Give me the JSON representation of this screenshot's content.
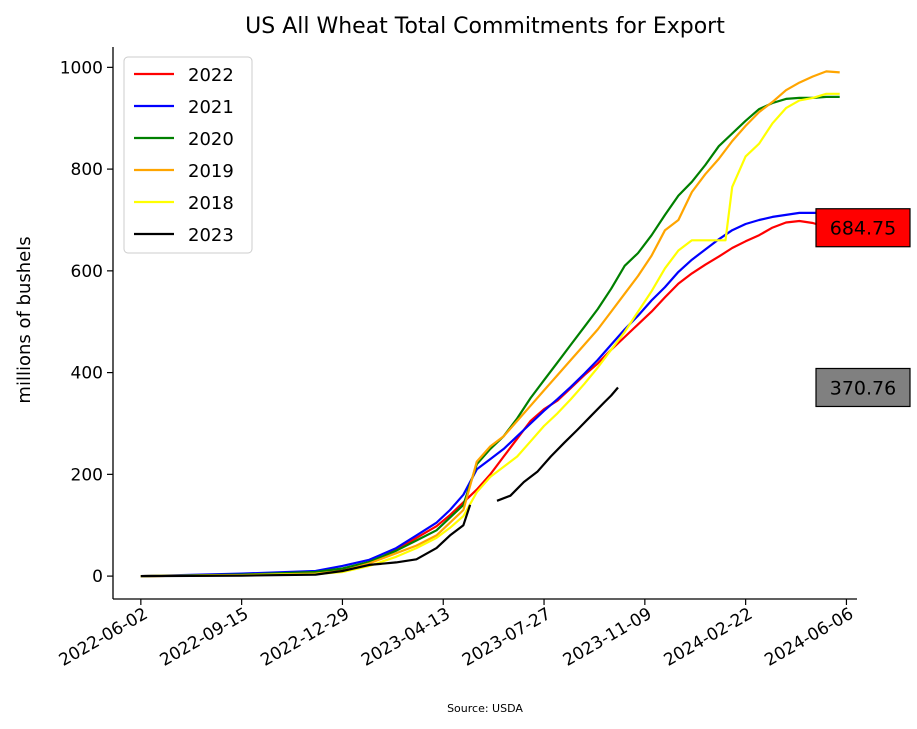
{
  "chart_data": {
    "type": "line",
    "title": "US All Wheat Total Commitments for Export",
    "ylabel": "millions of bushels",
    "xlabel": "",
    "source": "Source: USDA",
    "x_ticks": [
      "2022-06-02",
      "2022-09-15",
      "2022-12-29",
      "2023-04-13",
      "2023-07-27",
      "2023-11-09",
      "2024-02-22",
      "2024-06-06"
    ],
    "y_ticks": [
      0,
      200,
      400,
      600,
      800,
      1000
    ],
    "ylim": [
      -45,
      1040
    ],
    "xlim": [
      "2022-05-04",
      "2024-06-17"
    ],
    "grid": false,
    "legend_position": "top-left",
    "series": [
      {
        "name": "2022",
        "color": "#ff0000",
        "points": [
          [
            "2022-06-02",
            0
          ],
          [
            "2022-09-15",
            2
          ],
          [
            "2022-12-01",
            5
          ],
          [
            "2022-12-29",
            12
          ],
          [
            "2023-01-26",
            25
          ],
          [
            "2023-02-23",
            52
          ],
          [
            "2023-03-16",
            75
          ],
          [
            "2023-04-06",
            98
          ],
          [
            "2023-04-20",
            120
          ],
          [
            "2023-05-04",
            145
          ],
          [
            "2023-05-18",
            170
          ],
          [
            "2023-06-01",
            200
          ],
          [
            "2023-06-15",
            235
          ],
          [
            "2023-06-29",
            270
          ],
          [
            "2023-07-13",
            305
          ],
          [
            "2023-07-27",
            328
          ],
          [
            "2023-08-10",
            345
          ],
          [
            "2023-08-24",
            370
          ],
          [
            "2023-09-07",
            395
          ],
          [
            "2023-09-21",
            418
          ],
          [
            "2023-10-05",
            445
          ],
          [
            "2023-10-19",
            470
          ],
          [
            "2023-11-02",
            495
          ],
          [
            "2023-11-16",
            520
          ],
          [
            "2023-11-30",
            548
          ],
          [
            "2023-12-14",
            575
          ],
          [
            "2023-12-28",
            595
          ],
          [
            "2024-01-11",
            612
          ],
          [
            "2024-01-25",
            628
          ],
          [
            "2024-02-08",
            645
          ],
          [
            "2024-02-22",
            658
          ],
          [
            "2024-03-07",
            670
          ],
          [
            "2024-03-21",
            685
          ],
          [
            "2024-04-04",
            695
          ],
          [
            "2024-04-18",
            698
          ],
          [
            "2024-05-02",
            694
          ],
          [
            "2024-05-16",
            686
          ],
          [
            "2024-05-23",
            684.75
          ]
        ]
      },
      {
        "name": "2021",
        "color": "#0000ff",
        "points": [
          [
            "2022-06-02",
            0
          ],
          [
            "2022-09-15",
            5
          ],
          [
            "2022-12-01",
            10
          ],
          [
            "2022-12-29",
            20
          ],
          [
            "2023-01-26",
            32
          ],
          [
            "2023-02-23",
            55
          ],
          [
            "2023-03-16",
            80
          ],
          [
            "2023-04-06",
            105
          ],
          [
            "2023-04-20",
            130
          ],
          [
            "2023-05-04",
            160
          ],
          [
            "2023-05-18",
            210
          ],
          [
            "2023-06-01",
            230
          ],
          [
            "2023-06-15",
            250
          ],
          [
            "2023-06-29",
            275
          ],
          [
            "2023-07-13",
            300
          ],
          [
            "2023-07-27",
            325
          ],
          [
            "2023-08-10",
            348
          ],
          [
            "2023-08-24",
            372
          ],
          [
            "2023-09-07",
            398
          ],
          [
            "2023-09-21",
            425
          ],
          [
            "2023-10-05",
            455
          ],
          [
            "2023-10-19",
            485
          ],
          [
            "2023-11-02",
            512
          ],
          [
            "2023-11-16",
            542
          ],
          [
            "2023-11-30",
            568
          ],
          [
            "2023-12-14",
            598
          ],
          [
            "2023-12-28",
            622
          ],
          [
            "2024-01-11",
            642
          ],
          [
            "2024-01-25",
            662
          ],
          [
            "2024-02-08",
            680
          ],
          [
            "2024-02-22",
            692
          ],
          [
            "2024-03-07",
            700
          ],
          [
            "2024-03-21",
            706
          ],
          [
            "2024-04-04",
            710
          ],
          [
            "2024-04-18",
            714
          ],
          [
            "2024-05-02",
            714
          ],
          [
            "2024-05-16",
            714
          ],
          [
            "2024-05-30",
            714
          ]
        ]
      },
      {
        "name": "2020",
        "color": "#008000",
        "points": [
          [
            "2022-06-02",
            0
          ],
          [
            "2022-09-15",
            3
          ],
          [
            "2022-12-01",
            8
          ],
          [
            "2022-12-29",
            15
          ],
          [
            "2023-01-26",
            28
          ],
          [
            "2023-02-23",
            50
          ],
          [
            "2023-03-16",
            70
          ],
          [
            "2023-04-06",
            90
          ],
          [
            "2023-04-20",
            115
          ],
          [
            "2023-05-04",
            140
          ],
          [
            "2023-05-18",
            220
          ],
          [
            "2023-06-01",
            250
          ],
          [
            "2023-06-15",
            275
          ],
          [
            "2023-06-29",
            310
          ],
          [
            "2023-07-13",
            350
          ],
          [
            "2023-07-27",
            385
          ],
          [
            "2023-08-10",
            420
          ],
          [
            "2023-08-24",
            455
          ],
          [
            "2023-09-07",
            490
          ],
          [
            "2023-09-21",
            525
          ],
          [
            "2023-10-05",
            565
          ],
          [
            "2023-10-19",
            610
          ],
          [
            "2023-11-02",
            635
          ],
          [
            "2023-11-16",
            670
          ],
          [
            "2023-11-30",
            710
          ],
          [
            "2023-12-14",
            748
          ],
          [
            "2023-12-28",
            775
          ],
          [
            "2024-01-11",
            808
          ],
          [
            "2024-01-25",
            845
          ],
          [
            "2024-02-08",
            870
          ],
          [
            "2024-02-22",
            895
          ],
          [
            "2024-03-07",
            918
          ],
          [
            "2024-03-21",
            930
          ],
          [
            "2024-04-04",
            938
          ],
          [
            "2024-04-18",
            940
          ],
          [
            "2024-05-02",
            940
          ],
          [
            "2024-05-16",
            942
          ],
          [
            "2024-05-30",
            942
          ]
        ]
      },
      {
        "name": "2019",
        "color": "#ffa500",
        "points": [
          [
            "2022-06-02",
            0
          ],
          [
            "2022-09-15",
            2
          ],
          [
            "2022-12-01",
            5
          ],
          [
            "2022-12-29",
            10
          ],
          [
            "2023-01-26",
            25
          ],
          [
            "2023-02-23",
            45
          ],
          [
            "2023-03-16",
            60
          ],
          [
            "2023-04-06",
            80
          ],
          [
            "2023-04-20",
            105
          ],
          [
            "2023-05-04",
            130
          ],
          [
            "2023-05-18",
            225
          ],
          [
            "2023-06-01",
            255
          ],
          [
            "2023-06-15",
            275
          ],
          [
            "2023-06-29",
            305
          ],
          [
            "2023-07-13",
            335
          ],
          [
            "2023-07-27",
            365
          ],
          [
            "2023-08-10",
            395
          ],
          [
            "2023-08-24",
            425
          ],
          [
            "2023-09-07",
            455
          ],
          [
            "2023-09-21",
            485
          ],
          [
            "2023-10-05",
            520
          ],
          [
            "2023-10-19",
            555
          ],
          [
            "2023-11-02",
            590
          ],
          [
            "2023-11-16",
            630
          ],
          [
            "2023-11-30",
            680
          ],
          [
            "2023-12-14",
            700
          ],
          [
            "2023-12-28",
            755
          ],
          [
            "2024-01-11",
            790
          ],
          [
            "2024-01-25",
            820
          ],
          [
            "2024-02-08",
            855
          ],
          [
            "2024-02-22",
            885
          ],
          [
            "2024-03-07",
            912
          ],
          [
            "2024-03-21",
            932
          ],
          [
            "2024-04-04",
            955
          ],
          [
            "2024-04-18",
            970
          ],
          [
            "2024-05-02",
            982
          ],
          [
            "2024-05-16",
            992
          ],
          [
            "2024-05-30",
            990
          ]
        ]
      },
      {
        "name": "2018",
        "color": "#ffff00",
        "points": [
          [
            "2022-06-02",
            0
          ],
          [
            "2022-09-15",
            2
          ],
          [
            "2022-12-01",
            4
          ],
          [
            "2022-12-29",
            8
          ],
          [
            "2023-01-26",
            20
          ],
          [
            "2023-02-23",
            38
          ],
          [
            "2023-03-16",
            55
          ],
          [
            "2023-04-06",
            75
          ],
          [
            "2023-04-20",
            95
          ],
          [
            "2023-05-04",
            118
          ],
          [
            "2023-05-18",
            165
          ],
          [
            "2023-06-01",
            195
          ],
          [
            "2023-06-15",
            215
          ],
          [
            "2023-06-29",
            235
          ],
          [
            "2023-07-13",
            265
          ],
          [
            "2023-07-27",
            295
          ],
          [
            "2023-08-10",
            320
          ],
          [
            "2023-08-24",
            348
          ],
          [
            "2023-09-07",
            378
          ],
          [
            "2023-09-21",
            410
          ],
          [
            "2023-10-05",
            445
          ],
          [
            "2023-10-19",
            480
          ],
          [
            "2023-11-02",
            520
          ],
          [
            "2023-11-16",
            560
          ],
          [
            "2023-11-30",
            605
          ],
          [
            "2023-12-14",
            640
          ],
          [
            "2023-12-28",
            660
          ],
          [
            "2024-01-11",
            660
          ],
          [
            "2024-01-25",
            660
          ],
          [
            "2024-02-01",
            660
          ],
          [
            "2024-02-08",
            765
          ],
          [
            "2024-02-22",
            825
          ],
          [
            "2024-03-07",
            850
          ],
          [
            "2024-03-21",
            890
          ],
          [
            "2024-04-04",
            920
          ],
          [
            "2024-04-18",
            935
          ],
          [
            "2024-05-02",
            940
          ],
          [
            "2024-05-16",
            948
          ],
          [
            "2024-05-30",
            948
          ]
        ]
      },
      {
        "name": "2023",
        "color": "#000000",
        "points": [
          [
            "2022-06-02",
            0
          ],
          [
            "2022-09-15",
            1
          ],
          [
            "2022-12-01",
            3
          ],
          [
            "2022-12-29",
            10
          ],
          [
            "2023-01-26",
            22
          ],
          [
            "2023-02-23",
            27
          ],
          [
            "2023-03-16",
            33
          ],
          [
            "2023-04-06",
            55
          ],
          [
            "2023-04-20",
            80
          ],
          [
            "2023-05-04",
            100
          ],
          [
            "2023-05-11",
            140
          ],
          null,
          [
            "2023-06-08",
            148
          ],
          [
            "2023-06-22",
            158
          ],
          [
            "2023-07-06",
            185
          ],
          [
            "2023-07-20",
            205
          ],
          [
            "2023-08-03",
            235
          ],
          [
            "2023-08-17",
            262
          ],
          [
            "2023-08-31",
            288
          ],
          [
            "2023-09-14",
            315
          ],
          [
            "2023-09-28",
            342
          ],
          [
            "2023-10-05",
            355
          ],
          [
            "2023-10-12",
            370.76
          ]
        ]
      }
    ],
    "value_labels": [
      {
        "text": "684.75",
        "value": 684.75,
        "bg": "#ff0000"
      },
      {
        "text": "370.76",
        "value": 370.76,
        "bg": "#808080"
      }
    ]
  }
}
